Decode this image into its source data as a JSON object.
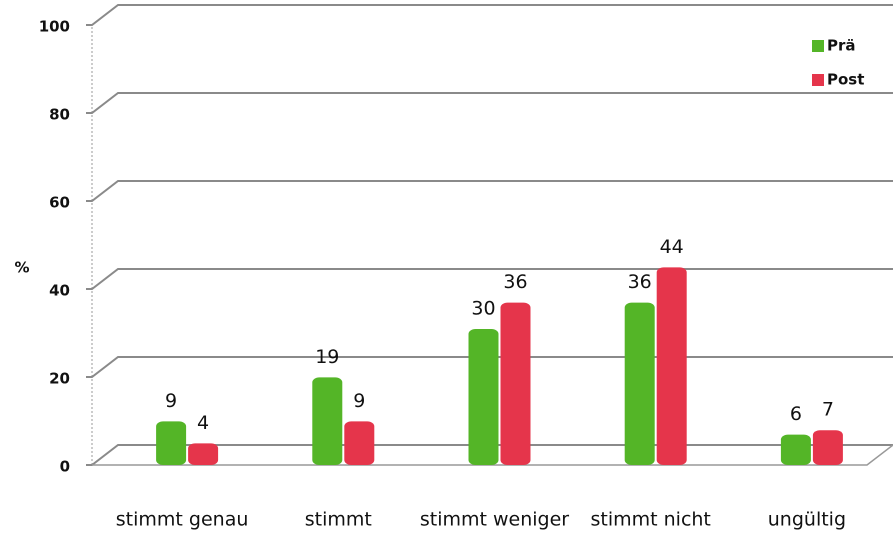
{
  "chart_data": {
    "type": "bar",
    "ylabel": "%",
    "categories": [
      "stimmt genau",
      "stimmt",
      "stimmt weniger",
      "stimmt nicht",
      "ungültig"
    ],
    "series": [
      {
        "name": "Prä",
        "color": "#54b527",
        "values": [
          9,
          19,
          30,
          36,
          6
        ]
      },
      {
        "name": "Post",
        "color": "#e5354b",
        "values": [
          4,
          9,
          36,
          44,
          7
        ]
      }
    ],
    "ylim": [
      0,
      100
    ],
    "yticks": [
      0,
      20,
      40,
      60,
      80,
      100
    ],
    "grid": true,
    "legend": "top-right"
  }
}
